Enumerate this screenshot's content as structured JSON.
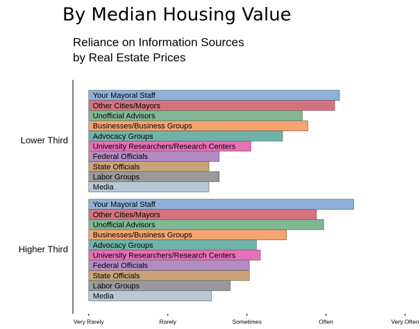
{
  "chart_data": {
    "type": "barh",
    "title": "By Median Housing Value",
    "subtitle": [
      "Reliance on Information Sources",
      "by Real Estate Prices"
    ],
    "categories": [
      "Lower Third",
      "Higher Third"
    ],
    "series": [
      {
        "name": "Your Mayoral Staff",
        "color": "#8fb0d8",
        "values": [
          4.17,
          4.35
        ]
      },
      {
        "name": "Other Cities/Mayors",
        "color": "#d4737f",
        "values": [
          4.11,
          3.88
        ]
      },
      {
        "name": "Unofficial Advisors",
        "color": "#7fb893",
        "values": [
          3.7,
          3.97
        ]
      },
      {
        "name": "Businesses/Business Groups",
        "color": "#f4a46f",
        "values": [
          3.77,
          3.5
        ]
      },
      {
        "name": "Advocacy Groups",
        "color": "#6fb3a8",
        "values": [
          3.45,
          3.12
        ]
      },
      {
        "name": "University Researchers/Research Centers",
        "color": "#e86fb8",
        "values": [
          3.05,
          3.17
        ]
      },
      {
        "name": "Federal Officials",
        "color": "#b48cc4",
        "values": [
          2.65,
          3.03
        ]
      },
      {
        "name": "State Officials",
        "color": "#c9a27a",
        "values": [
          2.52,
          3.03
        ]
      },
      {
        "name": "Labor Groups",
        "color": "#9a9a9a",
        "values": [
          2.65,
          2.79
        ]
      },
      {
        "name": "Media",
        "color": "#b8c9d6",
        "values": [
          2.52,
          2.55
        ]
      }
    ],
    "xlim": [
      0.8,
      5.1
    ],
    "xticks": [
      {
        "value": 1,
        "label": "Very Rarely"
      },
      {
        "value": 2,
        "label": "Rarely"
      },
      {
        "value": 3,
        "label": "Sometimes"
      },
      {
        "value": 4,
        "label": "Often"
      },
      {
        "value": 5,
        "label": "Very Often"
      }
    ]
  }
}
